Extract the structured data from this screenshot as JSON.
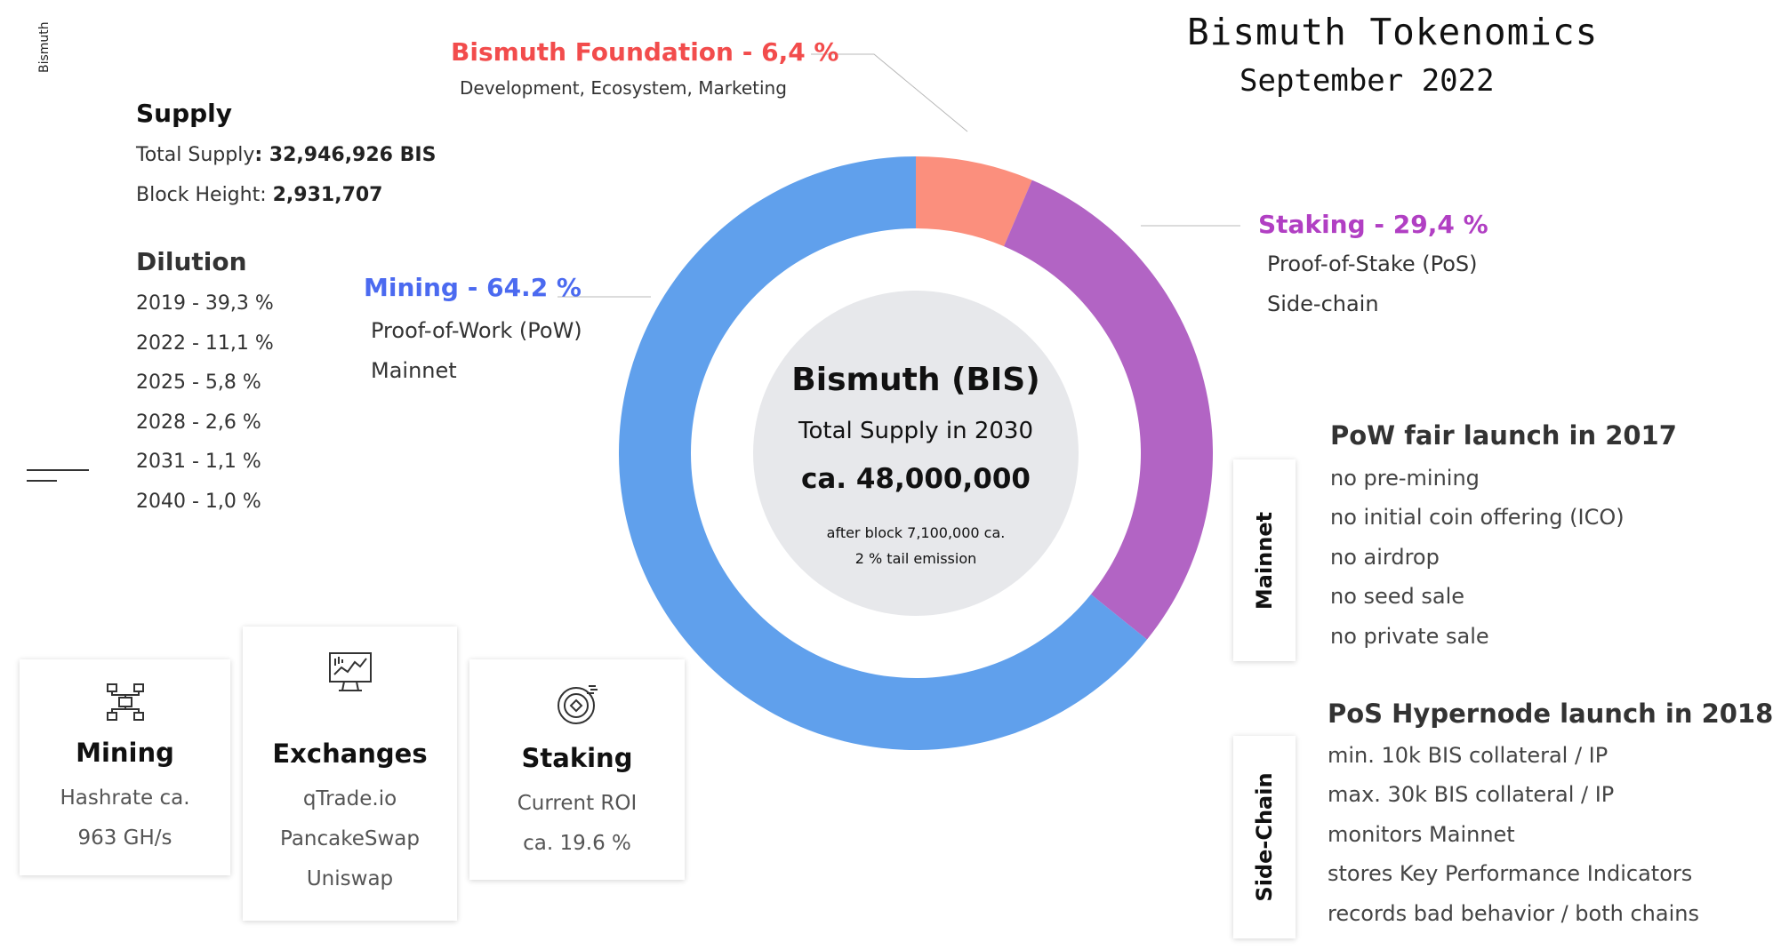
{
  "brand_vertical": "Bismuth",
  "title": "Bismuth Tokenomics",
  "subtitle": "September 2022",
  "supply": {
    "heading": "Supply",
    "total_label": "Total Supply",
    "total_value": ": 32,946,926  BIS",
    "height_label": "Block Height: ",
    "height_value": "2,931,707"
  },
  "dilution": {
    "heading": "Dilution",
    "items": [
      "2019 - 39,3 %",
      "2022 - 11,1 %",
      "2025 - 5,8 %",
      "2028 - 2,6 %",
      "2031 - 1,1 %",
      "2040 - 1,0 %"
    ]
  },
  "cards": [
    {
      "icon": "mining-network-icon",
      "title": "Mining",
      "lines": [
        "Hashrate ca.",
        "963 GH/s"
      ]
    },
    {
      "icon": "exchange-monitor-icon",
      "title": "Exchanges",
      "lines": [
        "qTrade.io",
        "PancakeSwap",
        "Uniswap"
      ]
    },
    {
      "icon": "staking-coin-icon",
      "title": "Staking",
      "lines": [
        "Current ROI",
        "ca. 19.6 %"
      ]
    }
  ],
  "chart_data": {
    "type": "pie",
    "donut": true,
    "slices": [
      {
        "label": "Bismuth Foundation - 6,4 %",
        "value": 6.4,
        "color": "#fb8f7d",
        "label_color": "#f24c4c",
        "details": [
          "Development, Ecosystem, Marketing"
        ]
      },
      {
        "label": "Staking - 29,4 %",
        "value": 29.4,
        "color": "#b264c4",
        "label_color": "#b13fc3",
        "details": [
          "Proof-of-Stake (PoS)",
          "Side-chain"
        ]
      },
      {
        "label": "Mining - 64.2 %",
        "value": 64.2,
        "color": "#60a0ec",
        "label_color": "#4b6af0",
        "details": [
          "Proof-of-Work (PoW)",
          "Mainnet"
        ]
      }
    ],
    "center": {
      "title": "Bismuth (BIS)",
      "line1": "Total Supply in 2030",
      "line2": "ca. 48,000,000",
      "note1": "after block 7,100,000 ca.",
      "note2": "2 % tail emission"
    }
  },
  "mainnet": {
    "tab": "Mainnet",
    "title": "PoW fair launch in 2017",
    "items": [
      "no pre-mining",
      "no initial coin offering (ICO)",
      "no airdrop",
      "no seed sale",
      "no private sale"
    ]
  },
  "sidechain": {
    "tab": "Side-Chain",
    "title": "PoS Hypernode launch in 2018",
    "items": [
      "min. 10k BIS collateral / IP",
      "max. 30k BIS collateral / IP",
      "monitors Mainnet",
      "stores Key Performance Indicators",
      "records bad behavior / both chains"
    ]
  }
}
